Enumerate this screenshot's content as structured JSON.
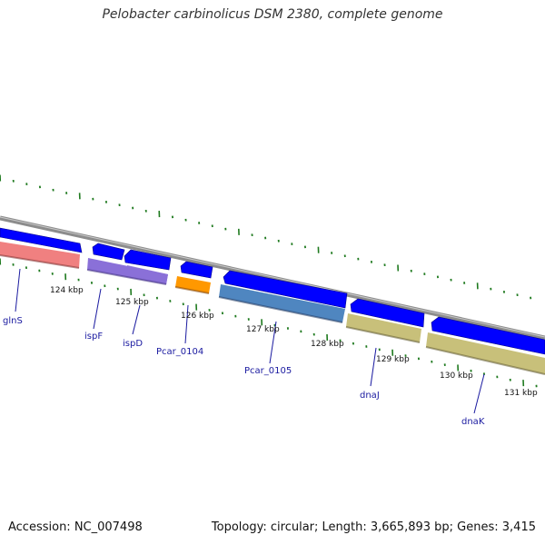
{
  "title": "Pelobacter carbinolicus DSM 2380, complete genome",
  "footer": {
    "accession": "Accession: NC_007498",
    "stats": "Topology: circular; Length: 3,665,893 bp; Genes: 3,415"
  },
  "scale_labels": [
    {
      "text": "124 kbp"
    },
    {
      "text": "125 kbp"
    },
    {
      "text": "126 kbp"
    },
    {
      "text": "127 kbp"
    },
    {
      "text": "128 kbp"
    },
    {
      "text": "129 kbp"
    },
    {
      "text": "130 kbp"
    },
    {
      "text": "131 kbp"
    }
  ],
  "genes": [
    {
      "name": "glnS",
      "color": "#f08080"
    },
    {
      "name": "ispF",
      "color": "#8a70d8"
    },
    {
      "name": "ispD",
      "color": "#8a70d8"
    },
    {
      "name": "Pcar_0104",
      "color": "#ff9800"
    },
    {
      "name": "Pcar_0105",
      "color": "#4f86c0"
    },
    {
      "name": "dnaJ",
      "color": "#c8c07a"
    },
    {
      "name": "dnaK",
      "color": "#c8c07a"
    }
  ],
  "colors": {
    "cds_arrow": "#0000ff",
    "backbone": "#888888",
    "gc_skew_ticks": "#1f7a1f",
    "label_line": "#1a1aa0"
  }
}
